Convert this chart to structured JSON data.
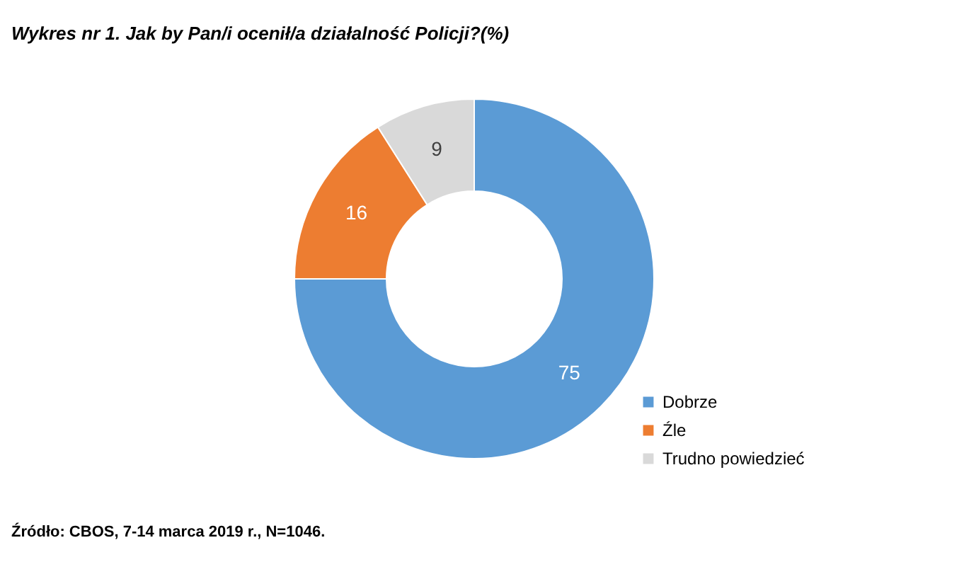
{
  "chart_data": {
    "type": "donut",
    "title": "Wykres nr 1.  Jak by Pan/i ocenił/a działalność Policji?(%)",
    "categories": [
      "Dobrze",
      "Źle",
      "Trudno powiedzieć"
    ],
    "values": [
      75,
      16,
      9
    ],
    "colors": [
      "#5b9bd5",
      "#ed7d31",
      "#d9d9d9"
    ],
    "data_labels": true,
    "legend": "right",
    "annotations": [
      "Źródło: CBOS, 7-14 marca 2019 r., N=1046."
    ]
  }
}
